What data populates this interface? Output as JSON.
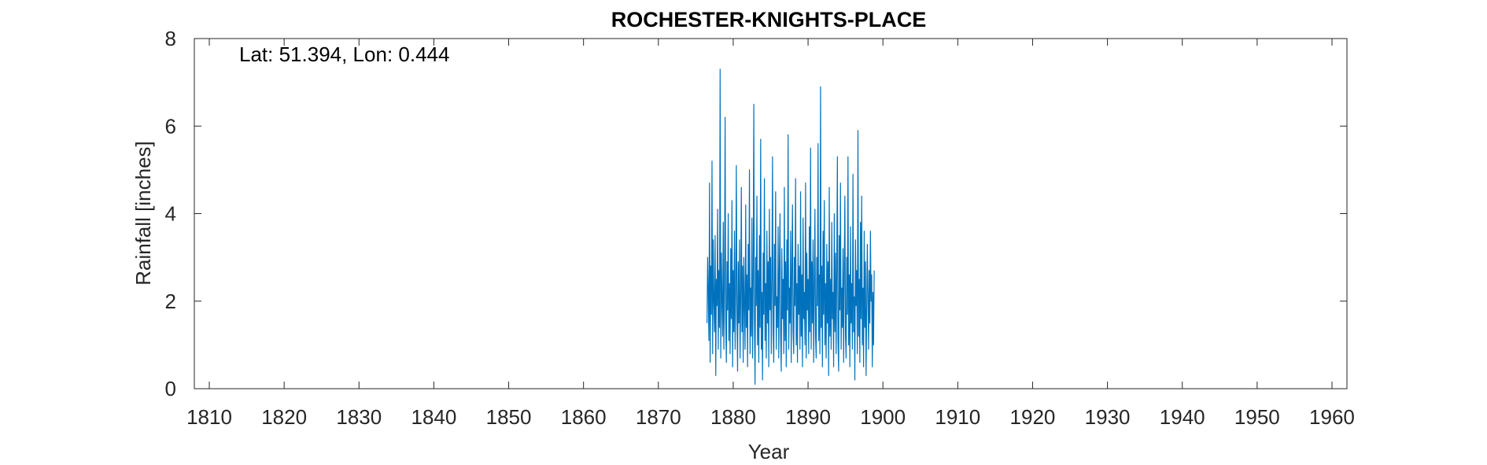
{
  "chart_data": {
    "type": "line",
    "title": "ROCHESTER-KNIGHTS-PLACE",
    "annotation": "Lat: 51.394, Lon: 0.444",
    "xlabel": "Year",
    "ylabel": "Rainfall [inches]",
    "xlim": [
      1808,
      1962
    ],
    "ylim": [
      0,
      8
    ],
    "x_ticks": [
      "1810",
      "1820",
      "1830",
      "1840",
      "1850",
      "1860",
      "1870",
      "1880",
      "1890",
      "1900",
      "1910",
      "1920",
      "1930",
      "1940",
      "1950",
      "1960"
    ],
    "y_ticks": [
      "0",
      "2",
      "4",
      "6",
      "8"
    ],
    "grid": false,
    "legend": "none",
    "series": [
      {
        "color": "#0072BD",
        "x_start": 1876.5,
        "x_step": 0.0833333,
        "values": [
          1.5,
          3.0,
          2.2,
          1.1,
          4.7,
          0.6,
          2.8,
          1.7,
          5.2,
          0.8,
          3.4,
          2.0,
          1.3,
          3.5,
          0.3,
          2.5,
          1.9,
          4.1,
          0.9,
          2.7,
          1.4,
          7.3,
          0.7,
          3.1,
          2.0,
          1.2,
          3.8,
          0.9,
          2.3,
          6.2,
          1.5,
          0.6,
          2.9,
          1.8,
          4.0,
          1.1,
          2.4,
          0.8,
          3.2,
          1.6,
          4.3,
          0.5,
          2.7,
          1.3,
          3.6,
          0.9,
          2.2,
          5.1,
          1.7,
          0.4,
          2.9,
          1.5,
          3.4,
          0.7,
          2.1,
          4.6,
          1.3,
          2.8,
          0.6,
          3.0,
          1.9,
          0.9,
          4.2,
          1.4,
          2.6,
          0.5,
          3.3,
          1.8,
          5.0,
          0.8,
          2.3,
          1.2,
          3.9,
          0.7,
          2.5,
          6.5,
          1.6,
          0.1,
          3.0,
          1.9,
          4.4,
          1.0,
          2.7,
          0.6,
          3.5,
          1.4,
          5.7,
          0.9,
          2.2,
          0.2,
          3.1,
          1.7,
          4.8,
          1.1,
          2.4,
          0.7,
          3.6,
          1.5,
          2.9,
          0.5,
          4.1,
          1.8,
          3.0,
          0.8,
          2.6,
          5.3,
          1.3,
          0.6,
          3.3,
          1.9,
          4.5,
          0.9,
          2.1,
          1.4,
          3.7,
          0.7,
          2.8,
          4.0,
          1.2,
          0.4,
          3.2,
          1.6,
          2.5,
          0.8,
          4.6,
          1.1,
          2.9,
          0.5,
          3.4,
          1.8,
          5.8,
          0.9,
          2.3,
          1.5,
          3.6,
          0.6,
          2.7,
          4.2,
          1.3,
          0.8,
          3.0,
          1.9,
          4.8,
          1.0,
          2.4,
          0.6,
          3.3,
          1.7,
          2.8,
          0.9,
          4.5,
          1.2,
          2.6,
          0.5,
          3.9,
          1.6,
          2.2,
          1.0,
          4.7,
          0.7,
          3.1,
          1.8,
          2.5,
          0.8,
          3.7,
          1.3,
          5.5,
          0.9,
          2.9,
          1.5,
          3.4,
          0.6,
          2.3,
          4.1,
          1.2,
          0.7,
          3.0,
          1.9,
          5.6,
          1.1,
          2.6,
          0.8,
          6.9,
          1.4,
          2.8,
          0.5,
          3.6,
          1.7,
          4.3,
          1.0,
          2.4,
          0.7,
          3.3,
          1.5,
          2.9,
          0.3,
          4.6,
          1.2,
          2.5,
          0.9,
          3.8,
          1.6,
          2.2,
          0.5,
          4.0,
          1.3,
          3.1,
          0.8,
          2.7,
          5.3,
          1.1,
          0.4,
          3.5,
          1.8,
          4.7,
          0.9,
          2.3,
          1.4,
          3.2,
          0.6,
          2.8,
          4.4,
          1.2,
          0.7,
          3.0,
          1.7,
          5.3,
          1.0,
          2.6,
          0.5,
          3.7,
          1.5,
          2.4,
          0.9,
          4.9,
          1.3,
          2.1,
          0.2,
          3.4,
          1.9,
          2.7,
          0.8,
          5.9,
          1.2,
          2.5,
          0.6,
          3.8,
          1.6,
          4.4,
          1.0,
          2.3,
          0.5,
          3.6,
          1.4,
          2.9,
          0.3,
          1.8,
          3.3,
          2.1,
          0.9,
          2.7,
          1.5,
          3.6,
          2.0,
          2.6,
          0.5,
          2.2,
          1.0,
          2.7
        ]
      }
    ]
  }
}
